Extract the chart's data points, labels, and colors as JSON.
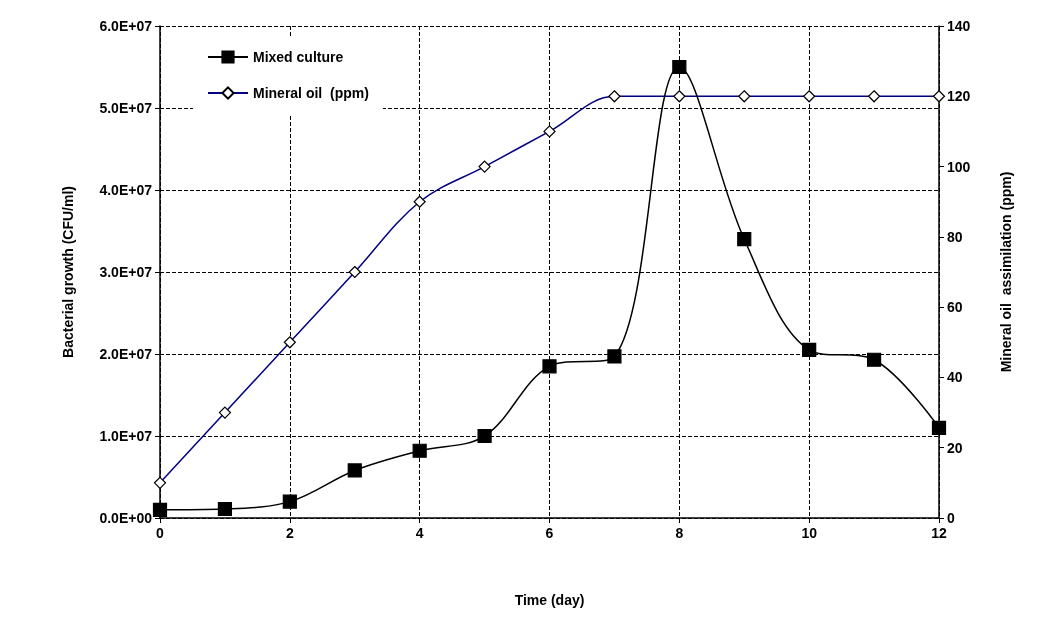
{
  "chart_data": {
    "type": "line",
    "xlabel": "Time (day)",
    "ylabel": "Bacterial growth (CFU/ml)",
    "y2label": "Mineral oil  assimilation (ppm)",
    "x": [
      0,
      1,
      2,
      3,
      4,
      5,
      6,
      7,
      8,
      9,
      10,
      11,
      12
    ],
    "series": [
      {
        "name": "Mixed culture",
        "color": "#000000",
        "marker": "square",
        "values": [
          1000000,
          1100000,
          2000000,
          5800000,
          8200000,
          10000000,
          18500000,
          19700000,
          55000000,
          34000000,
          20500000,
          19300000,
          11000000
        ]
      },
      {
        "name": "Mineral oil  (ppm)",
        "color": "#000080",
        "marker": "diamond",
        "axis": "y2",
        "values": [
          10,
          30,
          50,
          70,
          90,
          100,
          110,
          120,
          120,
          120,
          120,
          120,
          120
        ]
      }
    ],
    "xlim": [
      0,
      12
    ],
    "xticks": [
      0,
      2,
      4,
      6,
      8,
      10,
      12
    ],
    "ylim": [
      0,
      60000000
    ],
    "yticks": [
      {
        "value": 0,
        "label": "0.0E+00"
      },
      {
        "value": 10000000,
        "label": "1.0E+07"
      },
      {
        "value": 20000000,
        "label": "2.0E+07"
      },
      {
        "value": 30000000,
        "label": "3.0E+07"
      },
      {
        "value": 40000000,
        "label": "4.0E+07"
      },
      {
        "value": 50000000,
        "label": "5.0E+07"
      },
      {
        "value": 60000000,
        "label": "6.0E+07"
      }
    ],
    "y2lim": [
      0,
      140
    ],
    "y2ticks": [
      0,
      20,
      40,
      60,
      80,
      100,
      120,
      140
    ],
    "grid": true,
    "legend": "top left",
    "line_style": "solid"
  }
}
